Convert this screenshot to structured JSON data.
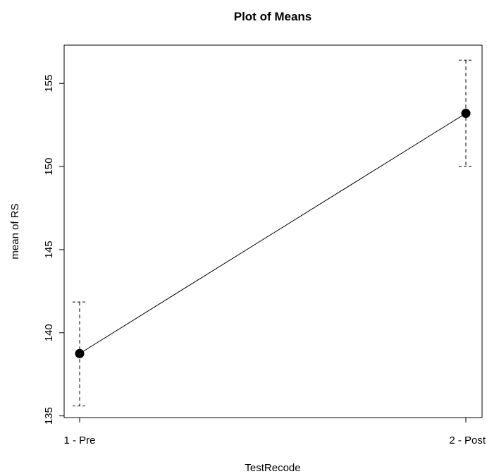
{
  "chart_data": {
    "type": "line",
    "title": "Plot of Means",
    "xlabel": "TestRecode",
    "ylabel": "mean of RS",
    "categories": [
      "1 - Pre",
      "2 - Post"
    ],
    "series": [
      {
        "values": [
          138.75,
          153.2
        ],
        "error_lower": [
          135.6,
          150.0
        ],
        "error_upper": [
          141.85,
          156.4
        ]
      }
    ],
    "ylim": [
      134.9,
      157.3
    ],
    "yticks": [
      "135",
      "140",
      "145",
      "150",
      "155"
    ],
    "grid": false,
    "legend": "none",
    "line_color": "#000000",
    "marker_color": "#000000"
  }
}
